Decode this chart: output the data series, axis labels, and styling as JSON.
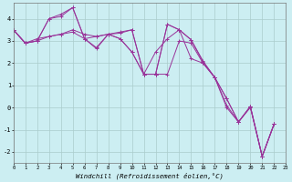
{
  "xlabel": "Windchill (Refroidissement éolien,°C)",
  "xlim": [
    0,
    23
  ],
  "ylim": [
    -2.5,
    4.7
  ],
  "xticks": [
    0,
    1,
    2,
    3,
    4,
    5,
    6,
    7,
    8,
    9,
    10,
    11,
    12,
    13,
    14,
    15,
    16,
    17,
    18,
    19,
    20,
    21,
    22,
    23
  ],
  "yticks": [
    -2,
    -1,
    0,
    1,
    2,
    3,
    4
  ],
  "bg_color": "#cceef2",
  "grid_color": "#aacccc",
  "line_color": "#993399",
  "series": [
    [
      3.5,
      2.9,
      3.0,
      4.0,
      4.2,
      4.5,
      3.1,
      2.65,
      3.3,
      3.35,
      3.5,
      1.5,
      1.5,
      3.75,
      3.5,
      3.05,
      2.1,
      1.35,
      0.4,
      -0.65,
      0.0,
      -2.2,
      -0.75
    ],
    [
      3.5,
      2.9,
      3.1,
      3.2,
      3.3,
      3.5,
      3.3,
      3.2,
      3.3,
      3.1,
      2.5,
      1.5,
      1.5,
      1.5,
      3.0,
      2.9,
      2.0,
      1.35,
      0.0,
      -0.65,
      0.05,
      -2.2,
      -0.75
    ],
    [
      3.5,
      2.9,
      3.0,
      3.2,
      3.3,
      3.4,
      3.1,
      3.2,
      3.3,
      3.1,
      2.5,
      1.5,
      2.5,
      3.1,
      3.5,
      2.2,
      2.0,
      1.35,
      0.1,
      -0.65,
      0.05,
      -2.2,
      -0.75
    ],
    [
      3.5,
      2.9,
      3.0,
      4.0,
      4.1,
      4.5,
      3.1,
      2.7,
      3.3,
      3.4,
      3.5,
      1.5,
      1.5,
      3.75,
      3.5,
      3.05,
      2.05,
      1.35,
      0.4,
      -0.65,
      0.05,
      -2.2,
      -0.75
    ]
  ]
}
